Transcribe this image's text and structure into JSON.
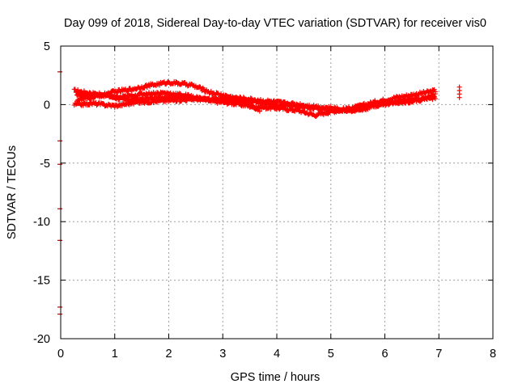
{
  "chart_data": {
    "type": "scatter",
    "title": "Day 099 of 2018, Sidereal Day-to-day VTEC variation (SDTVAR) for receiver vis0",
    "xlabel": "GPS time / hours",
    "ylabel": "SDTVAR / TECUs",
    "xlim": [
      0,
      8
    ],
    "ylim": [
      -20,
      5
    ],
    "xticks": [
      "0",
      "1",
      "2",
      "3",
      "4",
      "5",
      "6",
      "7",
      "8"
    ],
    "yticks": [
      "5",
      "0",
      "-5",
      "-10",
      "-15",
      "-20"
    ],
    "xtick_values": [
      0,
      1,
      2,
      3,
      4,
      5,
      6,
      7,
      8
    ],
    "ytick_values": [
      5,
      0,
      -5,
      -10,
      -15,
      -20
    ],
    "grid": true,
    "marker_color": "#ff0000",
    "tracks": [
      [
        [
          0.25,
          1.2
        ],
        [
          0.5,
          1.0
        ],
        [
          0.8,
          0.8
        ],
        [
          1.2,
          0.4
        ],
        [
          1.6,
          0.5
        ],
        [
          2.0,
          0.7
        ],
        [
          2.4,
          0.6
        ],
        [
          2.8,
          0.3
        ],
        [
          3.2,
          0.1
        ],
        [
          3.6,
          -0.2
        ],
        [
          4.0,
          -0.3
        ],
        [
          4.4,
          -0.5
        ],
        [
          4.7,
          -0.9
        ],
        [
          5.0,
          -0.6
        ],
        [
          5.4,
          -0.3
        ],
        [
          5.8,
          0.2
        ],
        [
          6.2,
          0.6
        ],
        [
          6.6,
          0.9
        ],
        [
          6.95,
          1.2
        ]
      ],
      [
        [
          0.3,
          0.4
        ],
        [
          0.6,
          0.6
        ],
        [
          1.0,
          1.1
        ],
        [
          1.3,
          1.3
        ],
        [
          1.6,
          1.6
        ],
        [
          2.0,
          1.9
        ],
        [
          2.4,
          1.7
        ],
        [
          2.8,
          1.0
        ],
        [
          3.2,
          0.6
        ],
        [
          3.6,
          0.4
        ],
        [
          4.0,
          0.2
        ],
        [
          4.4,
          0.0
        ],
        [
          4.8,
          -0.2
        ],
        [
          5.2,
          -0.4
        ],
        [
          5.6,
          -0.2
        ],
        [
          6.0,
          0.1
        ],
        [
          6.4,
          0.4
        ],
        [
          6.95,
          0.6
        ]
      ],
      [
        [
          0.25,
          0.0
        ],
        [
          0.6,
          0.1
        ],
        [
          1.0,
          -0.1
        ],
        [
          1.4,
          0.2
        ],
        [
          1.8,
          0.3
        ],
        [
          2.2,
          0.4
        ],
        [
          2.6,
          0.5
        ],
        [
          3.0,
          0.4
        ],
        [
          3.4,
          0.2
        ],
        [
          3.7,
          -0.5
        ]
      ],
      [
        [
          0.3,
          0.8
        ],
        [
          0.7,
          0.9
        ],
        [
          1.1,
          0.6
        ],
        [
          1.5,
          0.9
        ],
        [
          1.9,
          1.0
        ],
        [
          2.3,
          0.8
        ],
        [
          2.7,
          0.4
        ],
        [
          3.1,
          0.5
        ],
        [
          3.5,
          0.3
        ],
        [
          3.9,
          0.0
        ],
        [
          4.3,
          -0.1
        ],
        [
          4.7,
          -0.3
        ],
        [
          5.1,
          -0.5
        ],
        [
          5.5,
          -0.5
        ],
        [
          5.9,
          0.0
        ],
        [
          6.3,
          0.2
        ],
        [
          6.7,
          0.4
        ],
        [
          6.95,
          0.9
        ]
      ]
    ],
    "extra_points": [
      [
        7.38,
        1.5
      ],
      [
        7.38,
        1.2
      ],
      [
        7.38,
        0.9
      ],
      [
        7.38,
        0.6
      ]
    ],
    "axis_points": [
      [
        0,
        2.8
      ],
      [
        0,
        -3.1
      ],
      [
        0,
        -5.1
      ],
      [
        0,
        -8.9
      ],
      [
        0,
        -11.6
      ],
      [
        0,
        -17.3
      ],
      [
        0,
        -17.9
      ]
    ]
  }
}
